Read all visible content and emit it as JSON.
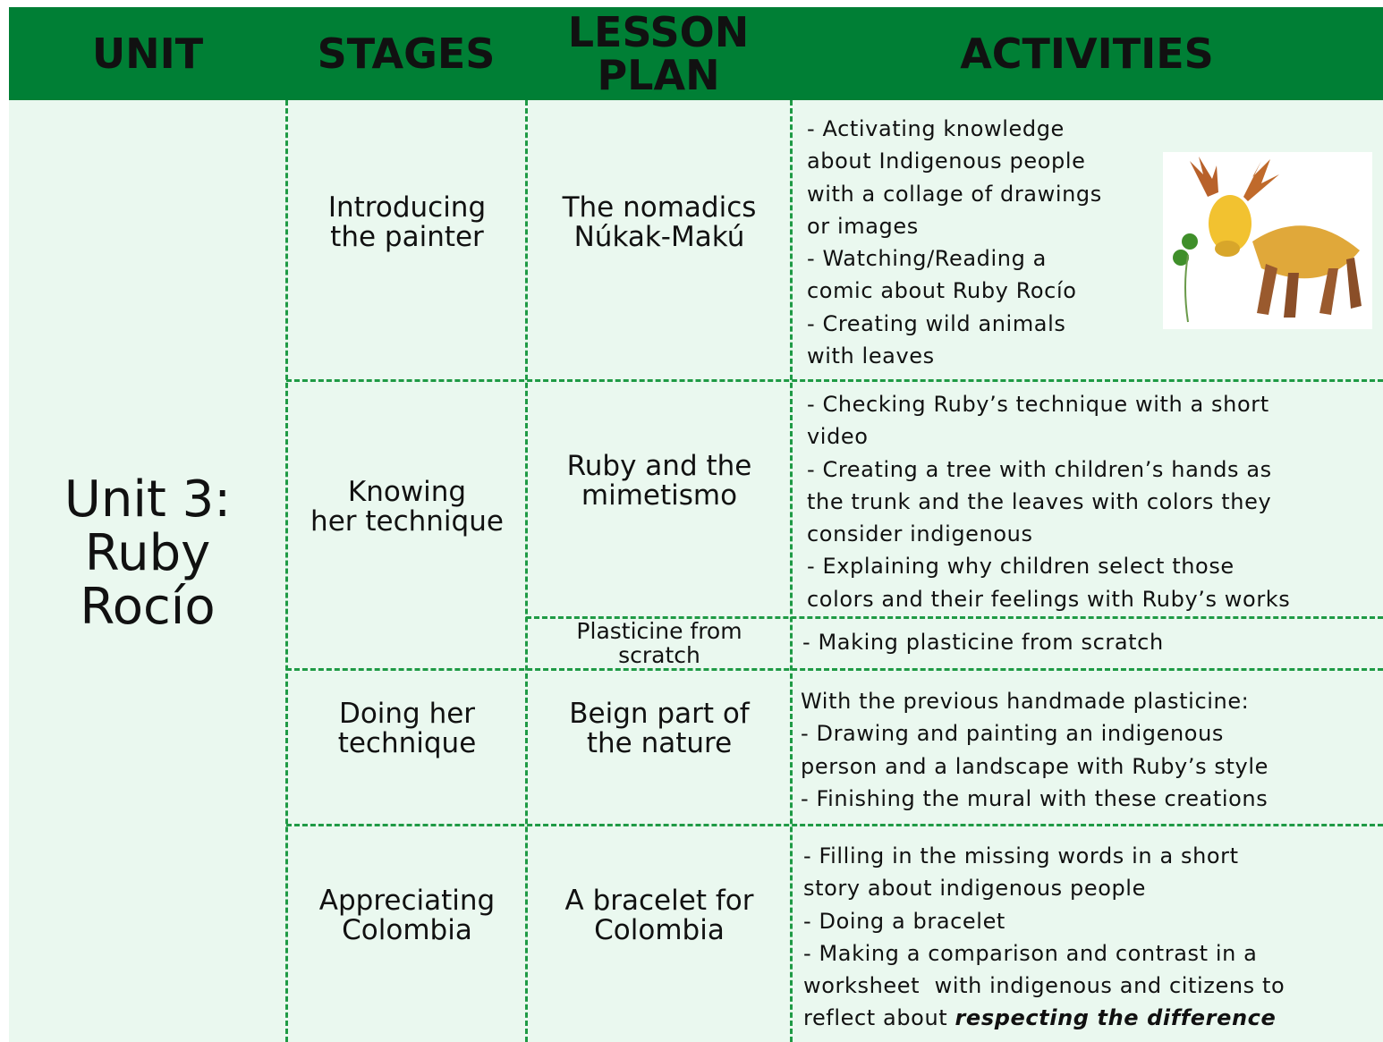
{
  "header": {
    "unit": "UNIT",
    "stages": "STAGES",
    "lesson_plan": [
      "LESSON",
      "PLAN"
    ],
    "activities": "ACTIVITIES"
  },
  "unit": [
    "Unit 3:",
    "Ruby",
    "Rocío"
  ],
  "rows": [
    {
      "stage": [
        "Introducing",
        "the painter"
      ],
      "lessons": [
        {
          "title": [
            "The nomadics",
            "Núkak-Makú"
          ],
          "activities": [
            "- Activating knowledge",
            "about Indigenous people",
            "with a collage of drawings",
            "or images",
            "- Watching/Reading a",
            "comic about Ruby Rocío",
            "- Creating wild animals",
            "with leaves"
          ]
        }
      ]
    },
    {
      "stage": [
        "Knowing",
        "her technique"
      ],
      "lessons": [
        {
          "title": [
            "Ruby and the",
            "mimetismo"
          ],
          "activities": [
            "- Checking Ruby’s technique with a short",
            "video",
            "- Creating a tree with children’s hands as",
            "the trunk and the leaves with colors they",
            "consider indigenous",
            "- Explaining why children select those",
            "colors and their feelings with Ruby’s works"
          ]
        },
        {
          "title": [
            "Plasticine from",
            "scratch"
          ],
          "activities": [
            "- Making plasticine from scratch"
          ]
        }
      ]
    },
    {
      "stage": [
        "Doing her",
        "technique"
      ],
      "lessons": [
        {
          "title": [
            "Beign part of",
            "the nature"
          ],
          "activities": [
            "With the previous handmade plasticine:",
            "- Drawing and painting an indigenous",
            "person and a landscape with Ruby’s style",
            "- Finishing the mural with these creations"
          ]
        }
      ]
    },
    {
      "stage": [
        "Appreciating",
        "Colombia"
      ],
      "lessons": [
        {
          "title": [
            "A bracelet for",
            "Colombia"
          ],
          "activities": [
            "- Filling in the missing words in a short",
            "story about indigenous people",
            "- Doing a bracelet",
            "- Making a comparison and contrast in a",
            "worksheet  with indigenous and citizens to",
            "reflect about "
          ],
          "emphasis": "respecting the difference"
        }
      ]
    }
  ]
}
